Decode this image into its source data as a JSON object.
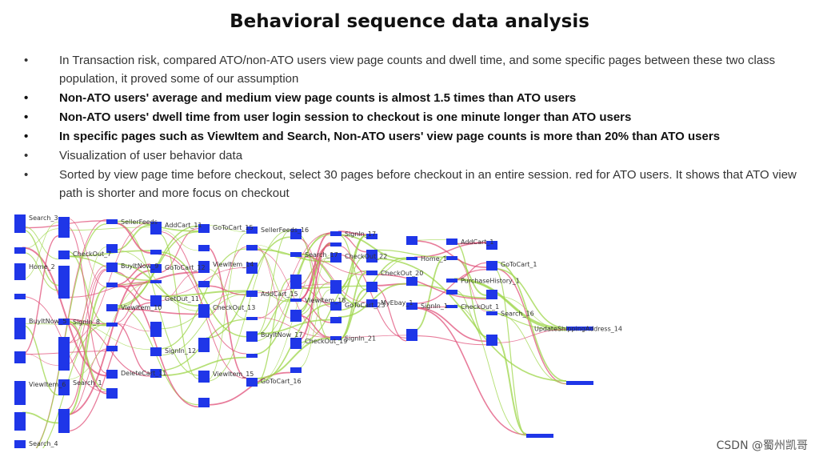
{
  "slide": {
    "title": "Behavioral sequence data analysis",
    "bullets": [
      {
        "text": "In Transaction risk, compared ATO/non-ATO users view page counts and dwell time, and some specific pages between these two class population, it proved some of our assumption",
        "bold": false
      },
      {
        "text": "Non-ATO users' average and medium view page counts is almost 1.5 times than ATO users",
        "bold": true
      },
      {
        "text": "Non-ATO users' dwell time from user login session to checkout is one minute longer than ATO users",
        "bold": true
      },
      {
        "text": "In specific pages such as ViewItem and Search, Non-ATO users' view page counts is more than 20% than ATO users",
        "bold": true
      },
      {
        "text": "Visualization of user behavior data",
        "bold": false
      },
      {
        "text": "Sorted by view page time before checkout, select 30 pages before checkout in an entire session. red for ATO users. It shows that ATO view path is shorter and more focus on checkout",
        "bold": false
      }
    ],
    "bullet_symbol": "•"
  },
  "sankey": {
    "colors": {
      "node": "#1f36e8",
      "ato_link": "#e0507a",
      "non_ato_link": "#9ed64a"
    },
    "labels": [
      "Search_3",
      "Home_2",
      "BuyItNow_5",
      "ViewItem_6",
      "Search_4",
      "CheckOut_7",
      "SignIn_8",
      "Search_1",
      "SellerFeeds",
      "BuyItNow_9",
      "ViewItem_10",
      "DeleteCart_11",
      "AddCart_11",
      "GoToCart_12",
      "GetOut_11",
      "SignIn_12",
      "GoToCart_15",
      "ViewItem_14",
      "CheckOut_13",
      "ViewItem_15",
      "SellerFeeds_16",
      "AddCart_15",
      "BuyItNow_17",
      "GoToCart_16",
      "Search_17",
      "ViewItem_18",
      "CheckOut_19",
      "SignIn_17",
      "CheckOut_22",
      "GoToCart_23",
      "SignIn_21",
      "CheckOut_20",
      "MyEbay_1",
      "Home_1",
      "SignIn_1",
      "AddCart_1",
      "PurchaseHistory_1",
      "CheckOut_1",
      "GoToCart_1",
      "Search_16",
      "UpdateShippingAddress_14"
    ]
  },
  "watermark": "CSDN @蜀州凯哥"
}
